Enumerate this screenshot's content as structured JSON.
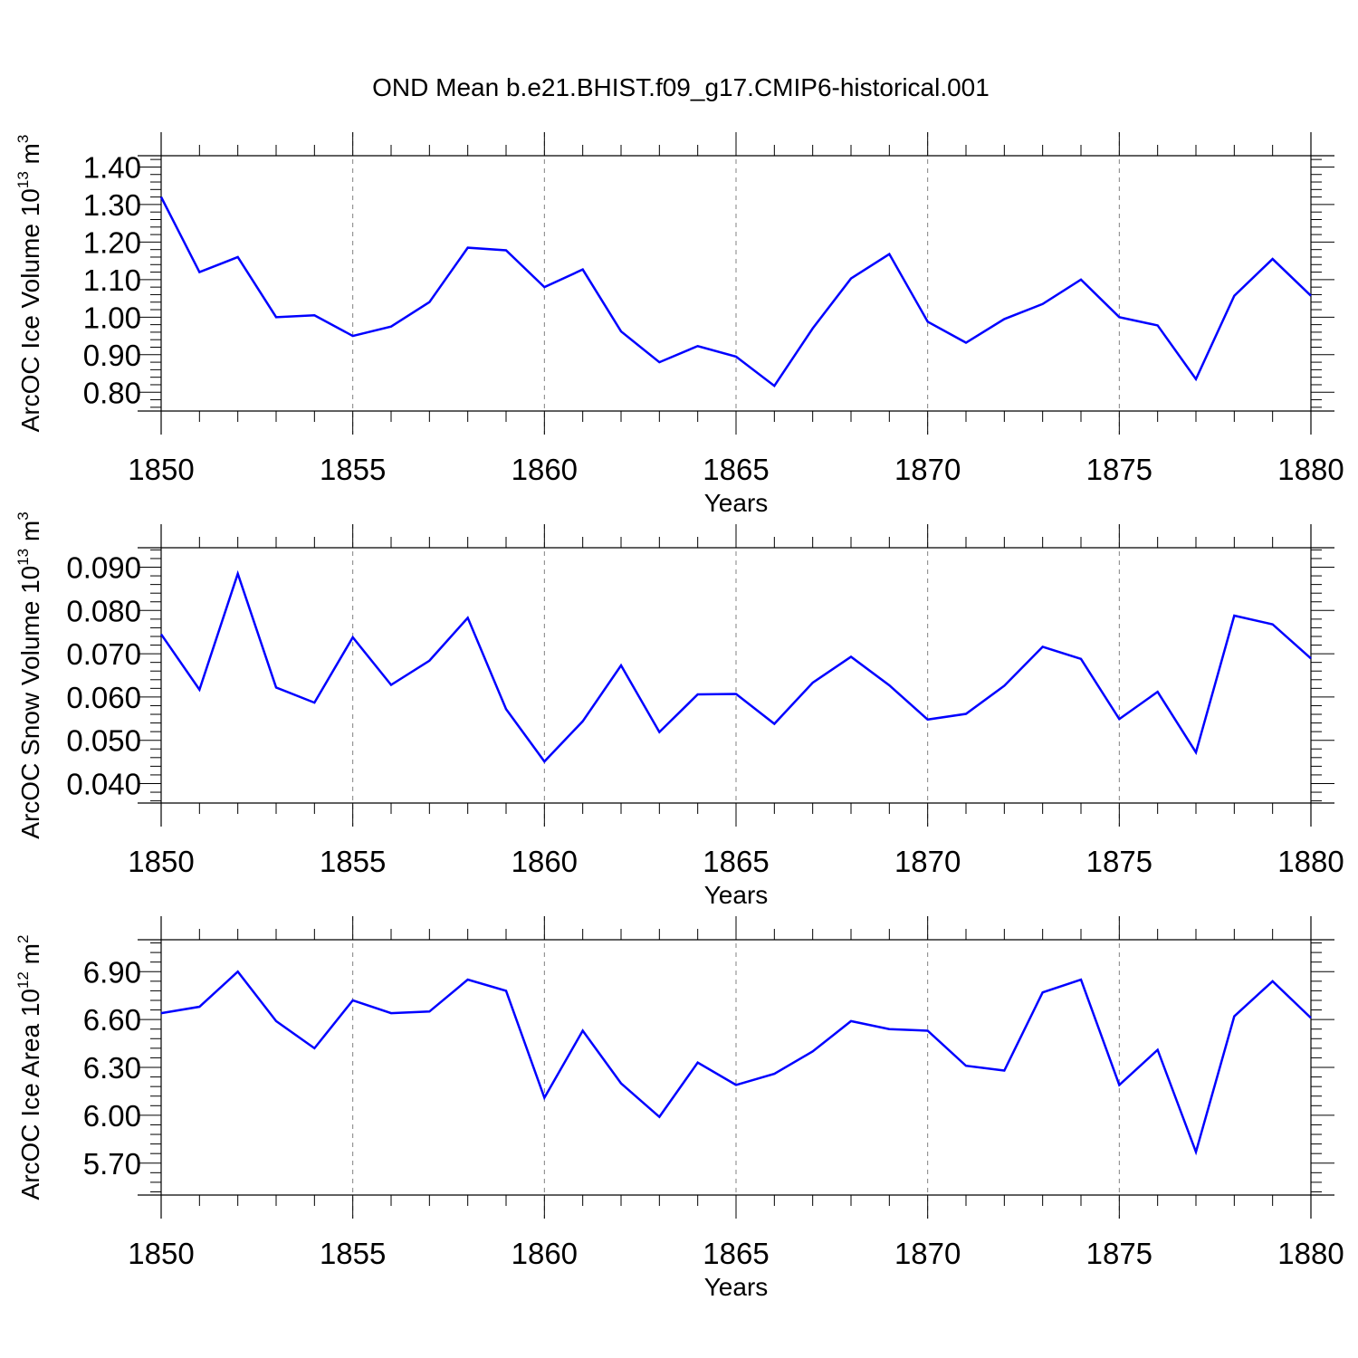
{
  "title": "OND Mean b.e21.BHIST.f09_g17.CMIP6-historical.001",
  "line_color": "#0000ff",
  "chart_data": [
    {
      "type": "line",
      "ylabel": {
        "text": "ArcOC Ice Volume 10",
        "exp": "13",
        "unit": " m",
        "unit_exp": "3"
      },
      "xlabel": "Years",
      "xlim": [
        1850,
        1880
      ],
      "ylim": [
        0.75,
        1.43
      ],
      "grid": "vertical dashed at major x ticks",
      "x_ticks": [
        "1850",
        "1855",
        "1860",
        "1865",
        "1870",
        "1875",
        "1880"
      ],
      "y_ticks": [
        "0.80",
        "0.90",
        "1.00",
        "1.10",
        "1.20",
        "1.30",
        "1.40"
      ],
      "x": [
        1850,
        1851,
        1852,
        1853,
        1854,
        1855,
        1856,
        1857,
        1858,
        1859,
        1860,
        1861,
        1862,
        1863,
        1864,
        1865,
        1866,
        1867,
        1868,
        1869,
        1870,
        1871,
        1872,
        1873,
        1874,
        1875,
        1876,
        1877,
        1878,
        1879,
        1880
      ],
      "series": [
        {
          "values": [
            1.32,
            1.12,
            1.16,
            1.0,
            1.005,
            0.95,
            0.975,
            1.04,
            1.185,
            1.178,
            1.08,
            1.127,
            0.962,
            0.88,
            0.923,
            0.895,
            0.817,
            0.97,
            1.103,
            1.168,
            0.988,
            0.932,
            0.995,
            1.035,
            1.1,
            1.0,
            0.978,
            0.835,
            1.057,
            1.155,
            1.057
          ]
        }
      ]
    },
    {
      "type": "line",
      "ylabel": {
        "text": "ArcOC Snow Volume 10",
        "exp": "13",
        "unit": " m",
        "unit_exp": "3"
      },
      "xlabel": "Years",
      "xlim": [
        1850,
        1880
      ],
      "ylim": [
        0.0355,
        0.0945
      ],
      "grid": "vertical dashed at major x ticks",
      "x_ticks": [
        "1850",
        "1855",
        "1860",
        "1865",
        "1870",
        "1875",
        "1880"
      ],
      "y_ticks": [
        "0.040",
        "0.050",
        "0.060",
        "0.070",
        "0.080",
        "0.090"
      ],
      "x": [
        1850,
        1851,
        1852,
        1853,
        1854,
        1855,
        1856,
        1857,
        1858,
        1859,
        1860,
        1861,
        1862,
        1863,
        1864,
        1865,
        1866,
        1867,
        1868,
        1869,
        1870,
        1871,
        1872,
        1873,
        1874,
        1875,
        1876,
        1877,
        1878,
        1879,
        1880
      ],
      "series": [
        {
          "values": [
            0.0745,
            0.0617,
            0.0885,
            0.0622,
            0.0587,
            0.0738,
            0.0628,
            0.0684,
            0.0783,
            0.0572,
            0.0451,
            0.0544,
            0.0673,
            0.0519,
            0.0606,
            0.0607,
            0.0538,
            0.0633,
            0.0693,
            0.0627,
            0.0548,
            0.0561,
            0.0626,
            0.0716,
            0.0688,
            0.0549,
            0.0612,
            0.0472,
            0.0788,
            0.0768,
            0.0689
          ]
        }
      ]
    },
    {
      "type": "line",
      "ylabel": {
        "text": "ArcOC Ice Area 10",
        "exp": "12",
        "unit": " m",
        "unit_exp": "2"
      },
      "xlabel": "Years",
      "xlim": [
        1850,
        1880
      ],
      "ylim": [
        5.5,
        7.1
      ],
      "grid": "vertical dashed at major x ticks",
      "x_ticks": [
        "1850",
        "1855",
        "1860",
        "1865",
        "1870",
        "1875",
        "1880"
      ],
      "y_ticks": [
        "5.70",
        "6.00",
        "6.30",
        "6.60",
        "6.90"
      ],
      "x": [
        1850,
        1851,
        1852,
        1853,
        1854,
        1855,
        1856,
        1857,
        1858,
        1859,
        1860,
        1861,
        1862,
        1863,
        1864,
        1865,
        1866,
        1867,
        1868,
        1869,
        1870,
        1871,
        1872,
        1873,
        1874,
        1875,
        1876,
        1877,
        1878,
        1879,
        1880
      ],
      "series": [
        {
          "values": [
            6.64,
            6.68,
            6.9,
            6.59,
            6.42,
            6.72,
            6.64,
            6.65,
            6.85,
            6.78,
            6.11,
            6.53,
            6.2,
            5.99,
            6.33,
            6.19,
            6.26,
            6.4,
            6.59,
            6.54,
            6.53,
            6.31,
            6.28,
            6.77,
            6.85,
            6.19,
            6.41,
            5.77,
            6.62,
            6.84,
            6.61
          ]
        }
      ]
    }
  ]
}
